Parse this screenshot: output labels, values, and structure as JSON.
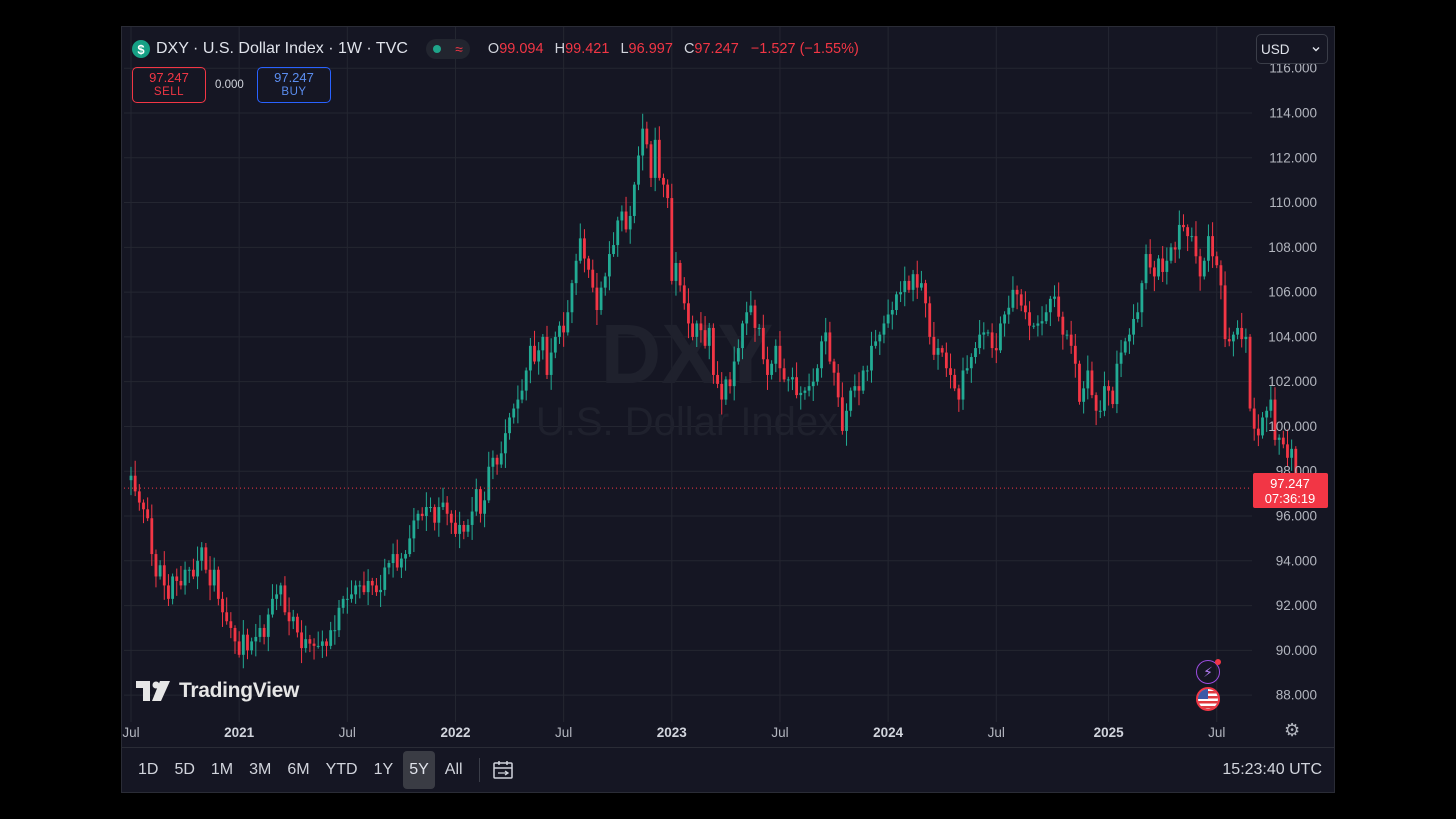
{
  "header": {
    "symbol_badge": "$",
    "title": "DXY · U.S. Dollar Index · 1W · TVC",
    "ohlc": [
      {
        "key": "O",
        "value": "99.094"
      },
      {
        "key": "H",
        "value": "99.421"
      },
      {
        "key": "L",
        "value": "96.997"
      },
      {
        "key": "C",
        "value": "97.247"
      }
    ],
    "change": "−1.527 (−1.55%)",
    "currency": "USD"
  },
  "trade": {
    "sell_price": "97.247",
    "sell_label": "SELL",
    "spread": "0.000",
    "buy_price": "97.247",
    "buy_label": "BUY"
  },
  "watermark": {
    "symbol": "DXY",
    "name": "U.S. Dollar Index"
  },
  "price_tag": {
    "price": "97.247",
    "countdown": "07:36:19"
  },
  "branding": {
    "logo_text": "TradingView"
  },
  "toolbar": {
    "ranges": [
      "1D",
      "5D",
      "1M",
      "3M",
      "6M",
      "YTD",
      "1Y",
      "5Y",
      "All"
    ],
    "active_range": "5Y",
    "clock": "15:23:40 UTC"
  },
  "colors": {
    "up": "#22ab94",
    "down": "#f23645",
    "background": "#151623",
    "grid": "#242631",
    "text": "#b2b5be"
  },
  "chart_data": {
    "type": "candlestick",
    "interval": "1W",
    "title": "DXY · U.S. Dollar Index · 1W · TVC",
    "ylim": [
      86.8,
      116.5
    ],
    "yticks": [
      "116.000",
      "114.000",
      "112.000",
      "110.000",
      "108.000",
      "106.000",
      "104.000",
      "102.000",
      "100.000",
      "98.000",
      "96.000",
      "94.000",
      "92.000",
      "90.000",
      "88.000"
    ],
    "xticks": [
      {
        "label": "Jul",
        "week": 0,
        "bold": false
      },
      {
        "label": "2021",
        "week": 26,
        "bold": true
      },
      {
        "label": "Jul",
        "week": 52,
        "bold": false
      },
      {
        "label": "2022",
        "week": 78,
        "bold": true
      },
      {
        "label": "Jul",
        "week": 104,
        "bold": false
      },
      {
        "label": "2023",
        "week": 130,
        "bold": true
      },
      {
        "label": "Jul",
        "week": 156,
        "bold": false
      },
      {
        "label": "2024",
        "week": 182,
        "bold": true
      },
      {
        "label": "Jul",
        "week": 208,
        "bold": false
      },
      {
        "label": "2025",
        "week": 235,
        "bold": true
      },
      {
        "label": "Jul",
        "week": 261,
        "bold": false
      }
    ],
    "last_price": 97.247,
    "grid": true,
    "closes": [
      97.8,
      97.1,
      96.6,
      96.3,
      95.9,
      94.3,
      93.3,
      93.8,
      92.9,
      92.3,
      93.3,
      93.1,
      92.9,
      93.6,
      93.6,
      93.3,
      94.0,
      94.6,
      93.6,
      92.9,
      93.6,
      92.3,
      91.7,
      91.3,
      91.0,
      90.4,
      89.8,
      90.7,
      90.0,
      90.4,
      90.6,
      91.0,
      90.6,
      91.6,
      92.3,
      92.5,
      92.9,
      91.7,
      91.3,
      91.5,
      90.8,
      90.1,
      90.5,
      90.3,
      90.2,
      90.2,
      90.4,
      90.2,
      90.9,
      90.9,
      91.9,
      92.3,
      92.3,
      92.5,
      92.9,
      92.9,
      92.6,
      93.1,
      92.9,
      92.6,
      92.7,
      93.7,
      93.9,
      94.3,
      93.7,
      94.1,
      94.3,
      95.0,
      95.8,
      96.1,
      96.0,
      96.4,
      96.4,
      95.7,
      96.4,
      96.6,
      96.1,
      95.7,
      95.2,
      95.6,
      95.3,
      95.6,
      96.2,
      97.2,
      96.1,
      96.7,
      98.2,
      98.6,
      98.3,
      98.8,
      99.7,
      100.4,
      100.8,
      101.2,
      101.6,
      102.5,
      103.6,
      102.9,
      103.4,
      104.0,
      102.3,
      103.3,
      104.0,
      104.5,
      104.2,
      105.1,
      106.4,
      107.4,
      108.4,
      107.5,
      107.0,
      106.2,
      105.2,
      106.2,
      106.7,
      107.7,
      108.1,
      109.2,
      109.6,
      108.8,
      109.4,
      110.8,
      112.1,
      113.3,
      112.6,
      111.1,
      112.8,
      111.1,
      110.8,
      110.2,
      106.5,
      107.3,
      106.3,
      105.5,
      104.6,
      104.0,
      104.6,
      104.3,
      103.6,
      104.4,
      102.3,
      101.9,
      101.2,
      102.1,
      101.8,
      102.9,
      103.5,
      104.6,
      105.1,
      105.4,
      104.4,
      104.4,
      103.0,
      102.3,
      102.8,
      103.6,
      102.6,
      102.1,
      102.1,
      102.2,
      101.4,
      101.5,
      101.6,
      101.8,
      102.0,
      102.6,
      103.8,
      104.2,
      102.9,
      102.4,
      101.3,
      99.8,
      100.7,
      101.6,
      101.8,
      101.6,
      102.5,
      102.5,
      103.6,
      103.8,
      104.1,
      104.6,
      105.0,
      105.2,
      105.9,
      106.0,
      106.5,
      106.1,
      106.8,
      106.2,
      106.4,
      105.5,
      104.0,
      103.2,
      103.5,
      103.3,
      102.6,
      102.3,
      101.7,
      101.2,
      102.5,
      102.6,
      103.1,
      103.5,
      104.1,
      104.2,
      104.2,
      103.5,
      103.4,
      104.6,
      105.0,
      105.3,
      106.1,
      105.9,
      105.4,
      105.1,
      104.5,
      104.5,
      104.6,
      104.7,
      105.1,
      105.7,
      105.8,
      104.9,
      104.1,
      104.1,
      103.6,
      102.8,
      101.1,
      101.7,
      102.5,
      101.4,
      100.7,
      100.7,
      101.8,
      101.6,
      101.0,
      102.8,
      103.3,
      103.8,
      104.1,
      104.8,
      105.1,
      106.4,
      107.7,
      107.1,
      106.7,
      107.5,
      106.9,
      107.4,
      108.0,
      107.9,
      109.0,
      108.9,
      108.5,
      108.5,
      107.6,
      106.7,
      107.4,
      108.5,
      107.6,
      107.2,
      106.3,
      103.9,
      103.8,
      104.1,
      104.4,
      103.9,
      104.0,
      100.8,
      99.9,
      99.6,
      100.4,
      100.7,
      101.2,
      99.4,
      99.5,
      99.2,
      98.6,
      99.0,
      97.25
    ]
  }
}
